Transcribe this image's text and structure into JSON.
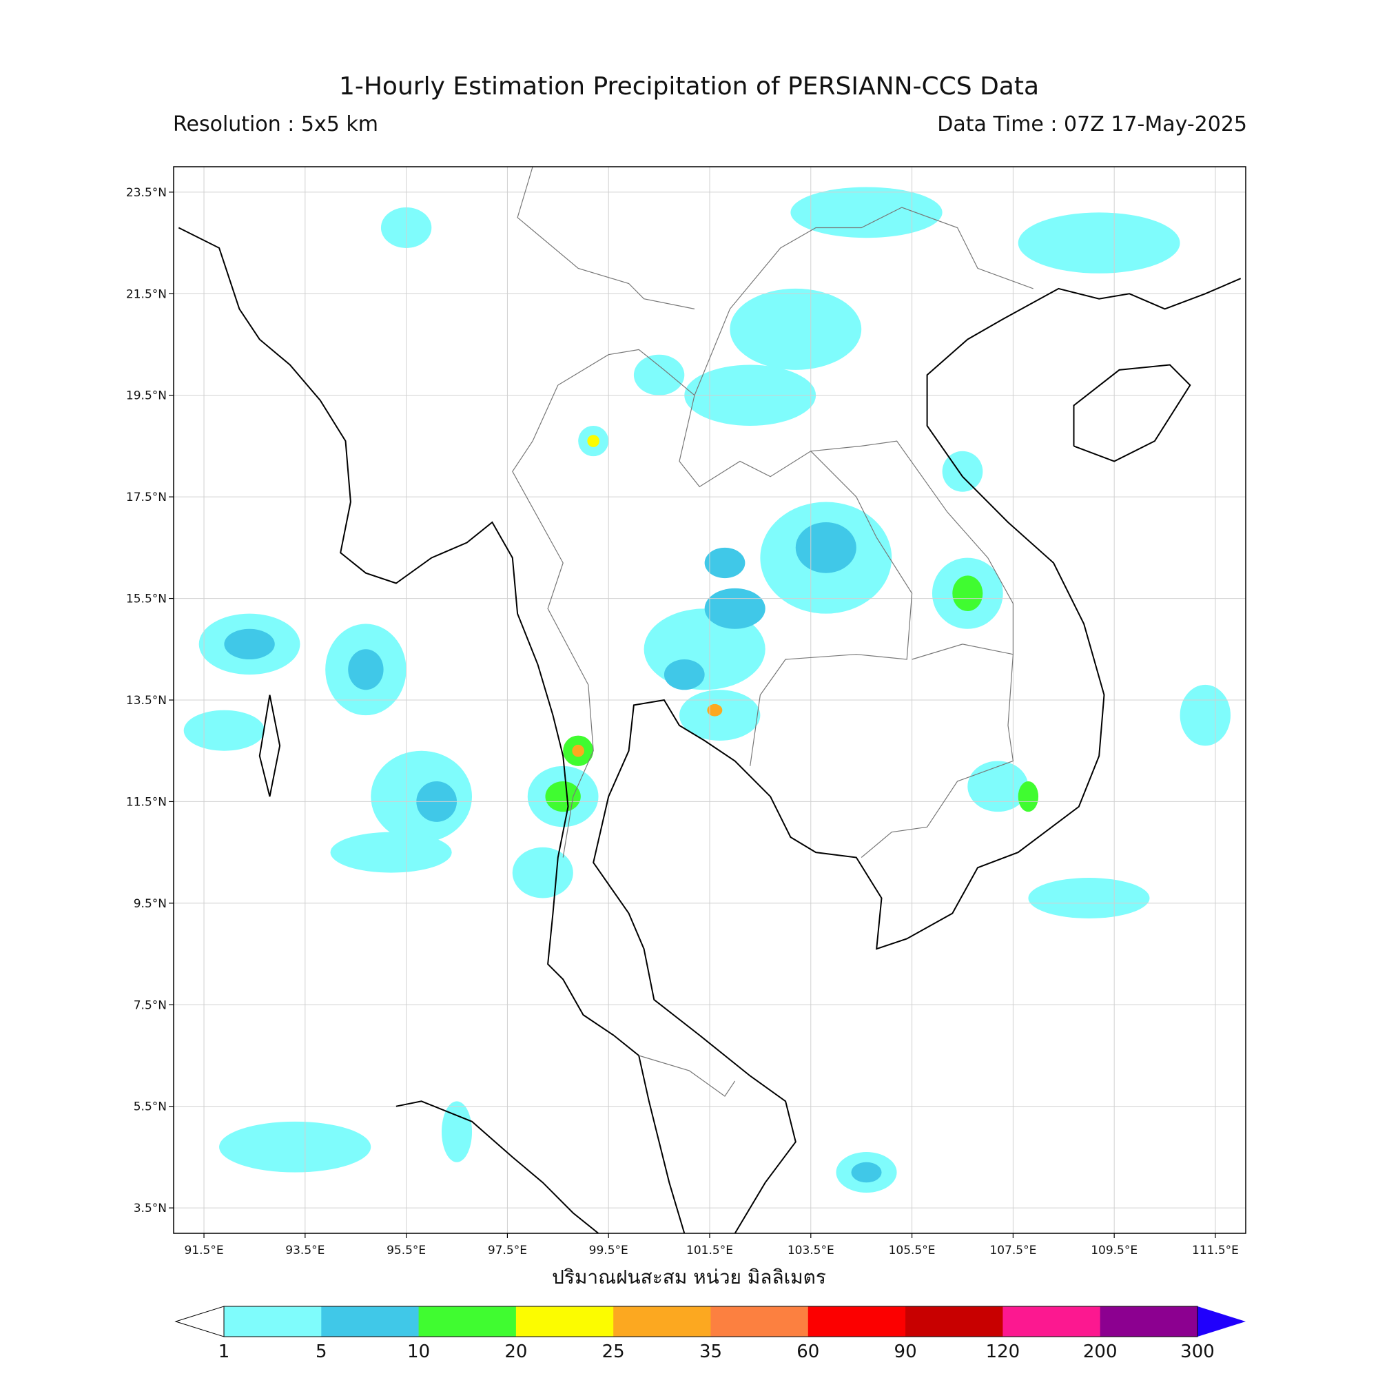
{
  "header": {
    "title": "1-Hourly Estimation Precipitation of PERSIANN-CCS Data",
    "resolution": "Resolution : 5x5 km",
    "data_time": "Data Time : 07Z 17-May-2025"
  },
  "map": {
    "x_ticks": [
      "91.5°E",
      "93.5°E",
      "95.5°E",
      "97.5°E",
      "99.5°E",
      "101.5°E",
      "103.5°E",
      "105.5°E",
      "107.5°E",
      "109.5°E",
      "111.5°E"
    ],
    "x_tick_values": [
      91.5,
      93.5,
      95.5,
      97.5,
      99.5,
      101.5,
      103.5,
      105.5,
      107.5,
      109.5,
      111.5
    ],
    "y_ticks": [
      "23.5°N",
      "21.5°N",
      "19.5°N",
      "17.5°N",
      "15.5°N",
      "13.5°N",
      "11.5°N",
      "9.5°N",
      "7.5°N",
      "5.5°N",
      "3.5°N"
    ],
    "y_tick_values": [
      23.5,
      21.5,
      19.5,
      17.5,
      15.5,
      13.5,
      11.5,
      9.5,
      7.5,
      5.5,
      3.5
    ],
    "lon_range": [
      90.9,
      112.1
    ],
    "lat_range": [
      3.0,
      24.0
    ],
    "x_axis_title": "ปริมาณฝนสะสม หน่วย มิลลิเมตร"
  },
  "colorbar": {
    "tick_labels": [
      "1",
      "5",
      "10",
      "20",
      "25",
      "35",
      "60",
      "90",
      "120",
      "200",
      "300"
    ],
    "colors": [
      "#7ffcfc",
      "#40c8e8",
      "#40fc30",
      "#fcfc00",
      "#fca820",
      "#fc8040",
      "#fc0000",
      "#c80000",
      "#fc1890",
      "#8c0090"
    ],
    "under_color": "#ffffff",
    "over_color": "#2000fc"
  },
  "rain_cells": [
    {
      "lon": 92.4,
      "lat": 14.6,
      "rx": 1.0,
      "ry": 0.6,
      "level": 1
    },
    {
      "lon": 92.4,
      "lat": 14.6,
      "rx": 0.5,
      "ry": 0.3,
      "level": 2
    },
    {
      "lon": 94.7,
      "lat": 14.1,
      "rx": 0.8,
      "ry": 0.9,
      "level": 1
    },
    {
      "lon": 94.7,
      "lat": 14.1,
      "rx": 0.35,
      "ry": 0.4,
      "level": 2
    },
    {
      "lon": 91.9,
      "lat": 12.9,
      "rx": 0.8,
      "ry": 0.4,
      "level": 1
    },
    {
      "lon": 95.8,
      "lat": 11.6,
      "rx": 1.0,
      "ry": 0.9,
      "level": 1
    },
    {
      "lon": 96.1,
      "lat": 11.5,
      "rx": 0.4,
      "ry": 0.4,
      "level": 2
    },
    {
      "lon": 95.2,
      "lat": 10.5,
      "rx": 1.2,
      "ry": 0.4,
      "level": 1
    },
    {
      "lon": 93.3,
      "lat": 4.7,
      "rx": 1.5,
      "ry": 0.5,
      "level": 1
    },
    {
      "lon": 95.5,
      "lat": 22.8,
      "rx": 0.5,
      "ry": 0.4,
      "level": 1
    },
    {
      "lon": 98.6,
      "lat": 11.6,
      "rx": 0.7,
      "ry": 0.6,
      "level": 1
    },
    {
      "lon": 98.6,
      "lat": 11.6,
      "rx": 0.35,
      "ry": 0.3,
      "level": 3
    },
    {
      "lon": 98.2,
      "lat": 10.1,
      "rx": 0.6,
      "ry": 0.5,
      "level": 1
    },
    {
      "lon": 98.9,
      "lat": 12.5,
      "rx": 0.3,
      "ry": 0.3,
      "level": 3
    },
    {
      "lon": 98.9,
      "lat": 12.5,
      "rx": 0.12,
      "ry": 0.12,
      "level": 5
    },
    {
      "lon": 101.4,
      "lat": 14.5,
      "rx": 1.2,
      "ry": 0.8,
      "level": 1
    },
    {
      "lon": 101.0,
      "lat": 14.0,
      "rx": 0.4,
      "ry": 0.3,
      "level": 2
    },
    {
      "lon": 102.0,
      "lat": 15.3,
      "rx": 0.6,
      "ry": 0.4,
      "level": 2
    },
    {
      "lon": 103.8,
      "lat": 16.3,
      "rx": 1.3,
      "ry": 1.1,
      "level": 1
    },
    {
      "lon": 103.8,
      "lat": 16.5,
      "rx": 0.6,
      "ry": 0.5,
      "level": 2
    },
    {
      "lon": 101.8,
      "lat": 16.2,
      "rx": 0.4,
      "ry": 0.3,
      "level": 2
    },
    {
      "lon": 101.7,
      "lat": 13.2,
      "rx": 0.8,
      "ry": 0.5,
      "level": 1
    },
    {
      "lon": 101.6,
      "lat": 13.3,
      "rx": 0.15,
      "ry": 0.12,
      "level": 5
    },
    {
      "lon": 106.6,
      "lat": 15.6,
      "rx": 0.7,
      "ry": 0.7,
      "level": 1
    },
    {
      "lon": 106.6,
      "lat": 15.6,
      "rx": 0.3,
      "ry": 0.35,
      "level": 3
    },
    {
      "lon": 106.5,
      "lat": 18.0,
      "rx": 0.4,
      "ry": 0.4,
      "level": 1
    },
    {
      "lon": 103.2,
      "lat": 20.8,
      "rx": 1.3,
      "ry": 0.8,
      "level": 1
    },
    {
      "lon": 102.3,
      "lat": 19.5,
      "rx": 1.3,
      "ry": 0.6,
      "level": 1
    },
    {
      "lon": 104.6,
      "lat": 23.1,
      "rx": 1.5,
      "ry": 0.5,
      "level": 1
    },
    {
      "lon": 109.2,
      "lat": 22.5,
      "rx": 1.6,
      "ry": 0.6,
      "level": 1
    },
    {
      "lon": 107.2,
      "lat": 11.8,
      "rx": 0.6,
      "ry": 0.5,
      "level": 1
    },
    {
      "lon": 107.8,
      "lat": 11.6,
      "rx": 0.2,
      "ry": 0.3,
      "level": 3
    },
    {
      "lon": 109.0,
      "lat": 9.6,
      "rx": 1.2,
      "ry": 0.4,
      "level": 1
    },
    {
      "lon": 104.6,
      "lat": 4.2,
      "rx": 0.6,
      "ry": 0.4,
      "level": 1
    },
    {
      "lon": 104.6,
      "lat": 4.2,
      "rx": 0.3,
      "ry": 0.2,
      "level": 2
    },
    {
      "lon": 96.5,
      "lat": 5.0,
      "rx": 0.3,
      "ry": 0.6,
      "level": 1
    },
    {
      "lon": 111.3,
      "lat": 13.2,
      "rx": 0.5,
      "ry": 0.6,
      "level": 1
    },
    {
      "lon": 100.5,
      "lat": 19.9,
      "rx": 0.5,
      "ry": 0.4,
      "level": 1
    },
    {
      "lon": 99.2,
      "lat": 18.6,
      "rx": 0.3,
      "ry": 0.3,
      "level": 1
    },
    {
      "lon": 99.2,
      "lat": 18.6,
      "rx": 0.12,
      "ry": 0.12,
      "level": 4
    }
  ]
}
